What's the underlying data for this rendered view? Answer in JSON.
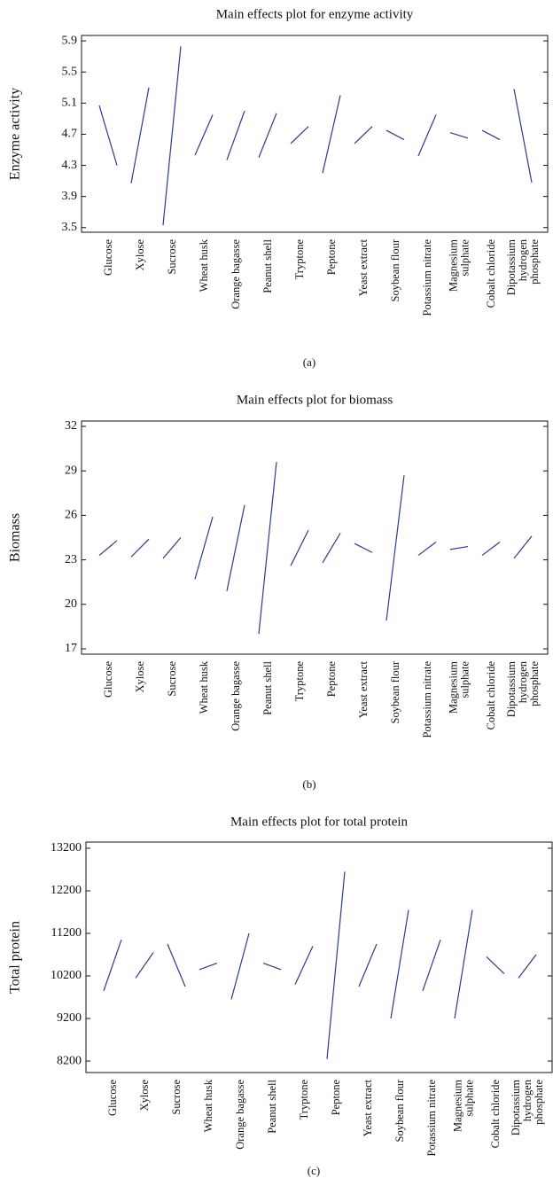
{
  "chart_data": [
    {
      "type": "line",
      "title": "Main effects plot for enzyme activity",
      "ylabel": "Enzyme activity",
      "panel_label": "(a)",
      "color": "#2b3a8f",
      "categories": [
        [
          "Glucose"
        ],
        [
          "Xylose"
        ],
        [
          "Sucrose"
        ],
        [
          "Wheat husk"
        ],
        [
          "Orange bagasse"
        ],
        [
          "Peanut shell"
        ],
        [
          "Tryptone"
        ],
        [
          "Peptone"
        ],
        [
          "Yeast extract"
        ],
        [
          "Soybean flour"
        ],
        [
          "Potassium nitrate"
        ],
        [
          "Magnesium",
          "sulphate"
        ],
        [
          "Cobalt chloride"
        ],
        [
          "Dipotassium",
          "hydrogen",
          "phosphate"
        ]
      ],
      "values": [
        [
          5.07,
          4.3
        ],
        [
          4.07,
          5.3
        ],
        [
          3.53,
          5.83
        ],
        [
          4.43,
          4.95
        ],
        [
          4.37,
          5.0
        ],
        [
          4.4,
          4.97
        ],
        [
          4.58,
          4.8
        ],
        [
          4.2,
          5.2
        ],
        [
          4.58,
          4.8
        ],
        [
          4.75,
          4.63
        ],
        [
          4.42,
          4.95
        ],
        [
          4.72,
          4.65
        ],
        [
          4.75,
          4.63
        ],
        [
          5.28,
          4.08
        ]
      ],
      "ylim": [
        3.44,
        5.97
      ],
      "yticks": [
        3.5,
        3.9,
        4.3,
        4.7,
        5.1,
        5.5,
        5.9
      ]
    },
    {
      "type": "line",
      "title": "Main effects plot for biomass",
      "ylabel": "Biomass",
      "panel_label": "(b)",
      "color": "#2b3a8f",
      "categories": [
        [
          "Glucose"
        ],
        [
          "Xylose"
        ],
        [
          "Sucrose"
        ],
        [
          "Wheat husk"
        ],
        [
          "Orange bagasse"
        ],
        [
          "Peanut shell"
        ],
        [
          "Tryptone"
        ],
        [
          "Peptone"
        ],
        [
          "Yeast extract"
        ],
        [
          "Soybean flour"
        ],
        [
          "Potassium nitrate"
        ],
        [
          "Magnesium",
          "sulphate"
        ],
        [
          "Cobalt chloride"
        ],
        [
          "Dipotassium",
          "hydrogen",
          "phosphate"
        ]
      ],
      "values": [
        [
          23.3,
          24.3
        ],
        [
          23.2,
          24.4
        ],
        [
          23.1,
          24.5
        ],
        [
          21.7,
          25.9
        ],
        [
          20.9,
          26.7
        ],
        [
          18.0,
          29.6
        ],
        [
          22.6,
          25.0
        ],
        [
          22.8,
          24.8
        ],
        [
          24.1,
          23.5
        ],
        [
          18.9,
          28.7
        ],
        [
          23.3,
          24.2
        ],
        [
          23.7,
          23.9
        ],
        [
          23.3,
          24.2
        ],
        [
          23.1,
          24.6
        ]
      ],
      "ylim": [
        16.64,
        32.36
      ],
      "yticks": [
        17,
        20,
        23,
        26,
        29,
        32
      ]
    },
    {
      "type": "line",
      "title": "Main effects plot for total protein",
      "ylabel": "Total protein",
      "panel_label": "(c)",
      "color": "#2b3a8f",
      "categories": [
        [
          "Glucose"
        ],
        [
          "Xylose"
        ],
        [
          "Sucrose"
        ],
        [
          "Wheat husk"
        ],
        [
          "Orange bagasse"
        ],
        [
          "Peanut shell"
        ],
        [
          "Tryptone"
        ],
        [
          "Peptone"
        ],
        [
          "Yeast extract"
        ],
        [
          "Soybean flour"
        ],
        [
          "Potassium nitrate"
        ],
        [
          "Magnesium",
          "sulphate"
        ],
        [
          "Cobalt chloride"
        ],
        [
          "Dipotassium",
          "hydrogen",
          "phosphate"
        ]
      ],
      "values": [
        [
          9850,
          11050
        ],
        [
          10150,
          10750
        ],
        [
          10950,
          9950
        ],
        [
          10350,
          10500
        ],
        [
          9650,
          11200
        ],
        [
          10500,
          10350
        ],
        [
          10000,
          10900
        ],
        [
          8250,
          12650
        ],
        [
          9950,
          10950
        ],
        [
          9200,
          11750
        ],
        [
          9850,
          11050
        ],
        [
          9200,
          11750
        ],
        [
          10650,
          10250
        ],
        [
          10150,
          10700
        ]
      ],
      "ylim": [
        7930,
        13345
      ],
      "yticks": [
        8200,
        9200,
        10200,
        11200,
        12200,
        13200
      ]
    }
  ]
}
